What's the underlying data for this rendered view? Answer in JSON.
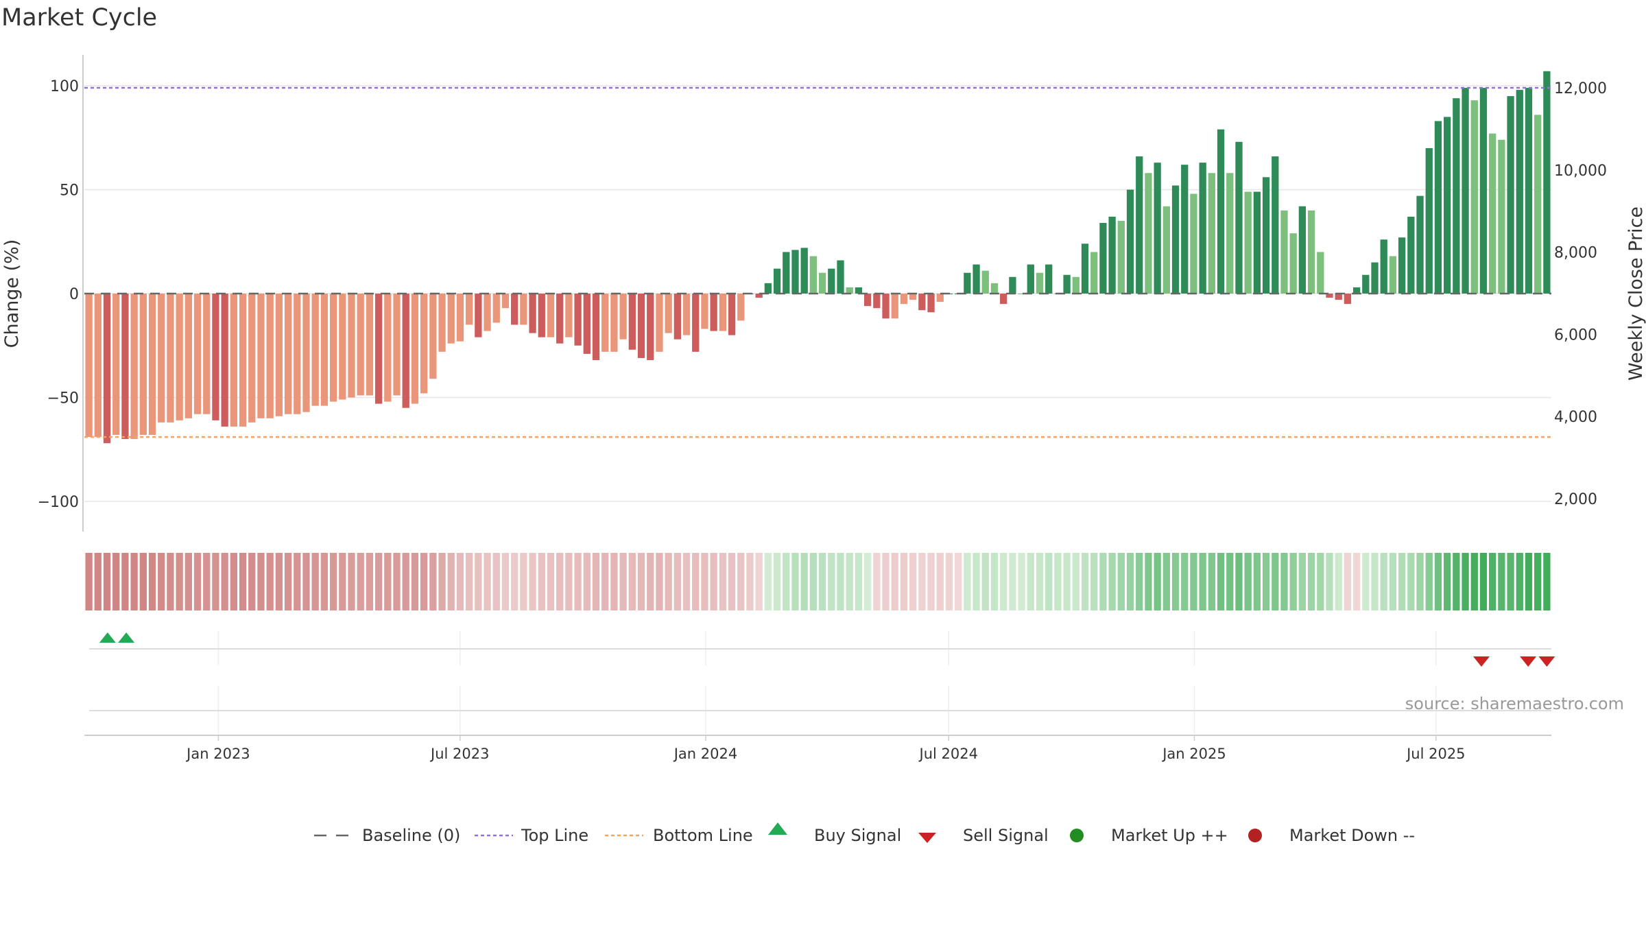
{
  "chart_data": {
    "type": "bar",
    "title": "Market Cycle",
    "ylabel_left": "Change (%)",
    "ylabel_right": "Weekly Close Price",
    "ylim_left": [
      -117,
      117
    ],
    "ylim_right": [
      1200,
      12800
    ],
    "left_ticks": [
      {
        "v": 100,
        "label": "100"
      },
      {
        "v": 50,
        "label": "50"
      },
      {
        "v": 0,
        "label": "0"
      },
      {
        "v": -50,
        "label": "−50"
      },
      {
        "v": -100,
        "label": "−100"
      }
    ],
    "right_ticks": [
      {
        "v": 12000,
        "label": "12,000"
      },
      {
        "v": 10000,
        "label": "10,000"
      },
      {
        "v": 8000,
        "label": "8,000"
      },
      {
        "v": 6000,
        "label": "6,000"
      },
      {
        "v": 4000,
        "label": "4,000"
      },
      {
        "v": 2000,
        "label": "2,000"
      }
    ],
    "x_start": "2022-09-26",
    "x_end": "2025-09-22",
    "x_ticks": [
      {
        "date": "2023-01-01",
        "label": "Jan 2023"
      },
      {
        "date": "2023-07-01",
        "label": "Jul 2023"
      },
      {
        "date": "2024-01-01",
        "label": "Jan 2024"
      },
      {
        "date": "2024-07-01",
        "label": "Jul 2024"
      },
      {
        "date": "2025-01-01",
        "label": "Jan 2025"
      },
      {
        "date": "2025-07-01",
        "label": "Jul 2025"
      }
    ],
    "top_line": 99,
    "bottom_line": -69,
    "baseline": 0,
    "values": [
      -69,
      -69,
      -72,
      -68,
      -70,
      -70,
      -68,
      -68,
      -62,
      -62,
      -61,
      -60,
      -58,
      -58,
      -61,
      -64,
      -64,
      -64,
      -62,
      -60,
      -60,
      -59,
      -58,
      -58,
      -57,
      -54,
      -54,
      -52,
      -51,
      -50,
      -49,
      -49,
      -53,
      -52,
      -49,
      -55,
      -53,
      -48,
      -41,
      -28,
      -24,
      -23,
      -15,
      -21,
      -18,
      -14,
      -7,
      -15,
      -15,
      -19,
      -21,
      -21,
      -24,
      -21,
      -25,
      -29,
      -32,
      -28,
      -28,
      -22,
      -27,
      -31,
      -32,
      -28,
      -19,
      -22,
      -20,
      -28,
      -17,
      -18,
      -18,
      -20,
      -13,
      0,
      -2,
      5,
      12,
      20,
      21,
      22,
      18,
      10,
      12,
      16,
      3,
      3,
      -6,
      -7,
      -12,
      -12,
      -5,
      -3,
      -8,
      -9,
      -4,
      0,
      0,
      10,
      14,
      11,
      5,
      -5,
      8,
      0,
      14,
      10,
      14,
      0,
      9,
      8,
      24,
      20,
      34,
      37,
      35,
      50,
      66,
      58,
      63,
      42,
      52,
      62,
      48,
      63,
      58,
      79,
      58,
      73,
      49,
      49,
      56,
      66,
      40,
      29,
      42,
      40,
      20,
      -2,
      -3,
      -5,
      3,
      9,
      15,
      26,
      18,
      27,
      37,
      47,
      70,
      83,
      85,
      94,
      99,
      93,
      99,
      77,
      74,
      95,
      98,
      99,
      86,
      107
    ],
    "colors": {
      "deep_green": "#2e8b57",
      "light_green": "#7dbf7d",
      "deep_red": "#cd5c5c",
      "light_red": "#e9967a",
      "top_line": "#9370db",
      "bottom_line": "#f4a460",
      "baseline": "#666666",
      "buy": "#22aa55",
      "sell": "#cc2222",
      "market_up": "#228b22",
      "market_down": "#b22222"
    },
    "buy_signals": [
      "2022-10-10",
      "2022-10-24"
    ],
    "sell_signals": [
      "2025-08-04",
      "2025-09-08",
      "2025-09-22"
    ],
    "source": "source: sharemaestro.com",
    "legend": [
      {
        "key": "baseline",
        "label": "Baseline (0)"
      },
      {
        "key": "top",
        "label": "Top Line"
      },
      {
        "key": "bottom",
        "label": "Bottom Line"
      },
      {
        "key": "buy",
        "label": "Buy Signal"
      },
      {
        "key": "sell",
        "label": "Sell Signal"
      },
      {
        "key": "up",
        "label": "Market Up ++"
      },
      {
        "key": "down",
        "label": "Market Down --"
      }
    ]
  }
}
